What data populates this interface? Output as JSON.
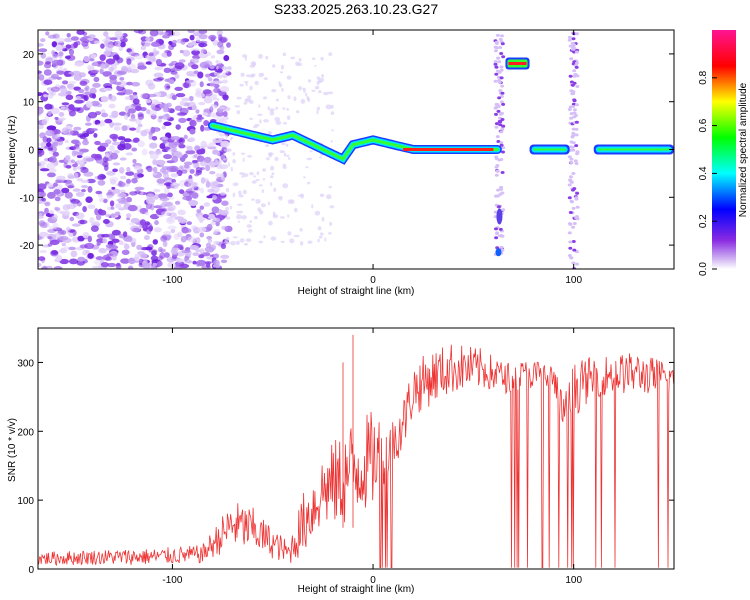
{
  "title": "S233.2025.263.10.23.G27",
  "chart_data": [
    {
      "type": "heatmap",
      "xlabel": "Height of straight line (km)",
      "ylabel": "Frequency (Hz)",
      "xlim": [
        -167,
        150
      ],
      "ylim": [
        -25,
        25
      ],
      "xticks": [
        -100,
        0,
        100
      ],
      "yticks": [
        -20,
        -10,
        0,
        10,
        20
      ],
      "colorbar": {
        "label": "Normalized spectral amplitude",
        "range": [
          0,
          1
        ],
        "ticks": [
          "0.0",
          "0.2",
          "0.4",
          "0.6",
          "0.8"
        ],
        "colors": [
          "#ffffff",
          "#8a2be2",
          "#0000ff",
          "#00ffff",
          "#00ff00",
          "#ffff00",
          "#ff0000",
          "#ff00aa"
        ]
      },
      "noise_region_km": [
        -167,
        -80
      ],
      "ridge_line": {
        "km": [
          -80,
          -70,
          -60,
          -50,
          -40,
          -30,
          -20,
          -15,
          -10,
          0,
          10,
          20,
          30,
          40,
          50,
          62
        ],
        "freq_hz": [
          5,
          4,
          3,
          2,
          3,
          1,
          -1,
          -2,
          1,
          2,
          1,
          0,
          0,
          0,
          0,
          0
        ]
      },
      "features": [
        {
          "name": "ridge-segment-right-1",
          "km": [
            78,
            98
          ],
          "freq_hz": 0
        },
        {
          "name": "ridge-segment-right-2",
          "km": [
            110,
            150
          ],
          "freq_hz": 0
        },
        {
          "name": "tone-20hz",
          "km": [
            66,
            78
          ],
          "freq_hz": 18
        },
        {
          "name": "vertical-band-65km",
          "km": 63,
          "freq_range_hz": [
            -22,
            24
          ]
        },
        {
          "name": "vertical-band-100km",
          "km": 100,
          "freq_range_hz": [
            -25,
            25
          ]
        }
      ]
    },
    {
      "type": "line",
      "xlabel": "Height of straight line (km)",
      "ylabel": "SNR (10 * v/v)",
      "xlim": [
        -167,
        150
      ],
      "ylim": [
        0,
        350
      ],
      "xticks": [
        -100,
        0,
        100
      ],
      "yticks": [
        0,
        100,
        200,
        300
      ],
      "color": "#ee3333",
      "envelope": {
        "km": [
          -167,
          -140,
          -110,
          -85,
          -70,
          -60,
          -50,
          -42,
          -35,
          -25,
          -15,
          -10,
          0,
          10,
          15,
          20,
          30,
          40,
          55,
          65,
          80,
          90,
          95,
          100,
          110,
          130,
          150
        ],
        "snr_lo": [
          5,
          6,
          6,
          8,
          30,
          25,
          15,
          5,
          20,
          60,
          60,
          70,
          90,
          150,
          170,
          220,
          240,
          255,
          260,
          255,
          260,
          250,
          200,
          220,
          250,
          255,
          250
        ],
        "snr_hi": [
          25,
          28,
          30,
          35,
          100,
          90,
          60,
          40,
          110,
          170,
          200,
          220,
          230,
          220,
          250,
          300,
          320,
          330,
          320,
          300,
          305,
          300,
          250,
          300,
          310,
          315,
          300
        ]
      },
      "spikes": [
        {
          "km": -10,
          "snr": 340
        },
        {
          "km": -15,
          "snr": 300
        }
      ],
      "dropout_region_km": [
        62,
        150
      ]
    }
  ]
}
